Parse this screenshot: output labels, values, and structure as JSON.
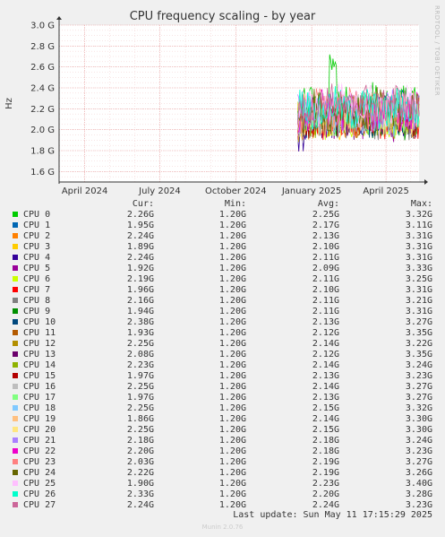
{
  "title": "CPU frequency scaling - by year",
  "side_label": "RRDTOOL / TOBI OETIKER",
  "headers": {
    "cur": "Cur:",
    "min": "Min:",
    "avg": "Avg:",
    "max": "Max:"
  },
  "last_update": "Last update: Sun May 11 17:15:29 2025",
  "footer": "Munin 2.0.76",
  "chart_data": {
    "type": "line",
    "title": "CPU frequency scaling - by year",
    "ylabel": "Hz",
    "y_ticks": [
      "1.6 G",
      "1.8 G",
      "2.0 G",
      "2.2 G",
      "2.4 G",
      "2.6 G",
      "2.8 G",
      "3.0 G"
    ],
    "y_tick_values": [
      1.6,
      1.8,
      2.0,
      2.2,
      2.4,
      2.6,
      2.8,
      3.0
    ],
    "ylim": [
      1.5,
      3.0
    ],
    "x_ticks": [
      "April 2024",
      "July 2024",
      "October 2024",
      "January 2025",
      "April 2025"
    ],
    "x_tick_dates": [
      "2024-04-01",
      "2024-07-01",
      "2024-10-01",
      "2025-01-01",
      "2025-04-01"
    ],
    "xlim": [
      "2024-03-01",
      "2025-05-11"
    ],
    "data_start": "2024-12-15",
    "grid": true,
    "series": [
      {
        "name": "CPU 0",
        "color": "#00cc00",
        "cur": "2.26G",
        "min": "1.20G",
        "avg": "2.25G",
        "max": "3.32G"
      },
      {
        "name": "CPU 1",
        "color": "#0066b3",
        "cur": "1.95G",
        "min": "1.20G",
        "avg": "2.17G",
        "max": "3.11G"
      },
      {
        "name": "CPU 2",
        "color": "#ff8000",
        "cur": "2.24G",
        "min": "1.20G",
        "avg": "2.13G",
        "max": "3.31G"
      },
      {
        "name": "CPU 3",
        "color": "#ffcc00",
        "cur": "1.89G",
        "min": "1.20G",
        "avg": "2.10G",
        "max": "3.31G"
      },
      {
        "name": "CPU 4",
        "color": "#330099",
        "cur": "2.24G",
        "min": "1.20G",
        "avg": "2.11G",
        "max": "3.31G"
      },
      {
        "name": "CPU 5",
        "color": "#990099",
        "cur": "1.92G",
        "min": "1.20G",
        "avg": "2.09G",
        "max": "3.33G"
      },
      {
        "name": "CPU 6",
        "color": "#ccff00",
        "cur": "2.19G",
        "min": "1.20G",
        "avg": "2.11G",
        "max": "3.25G"
      },
      {
        "name": "CPU 7",
        "color": "#ff0000",
        "cur": "1.96G",
        "min": "1.20G",
        "avg": "2.10G",
        "max": "3.31G"
      },
      {
        "name": "CPU 8",
        "color": "#808080",
        "cur": "2.16G",
        "min": "1.20G",
        "avg": "2.11G",
        "max": "3.21G"
      },
      {
        "name": "CPU 9",
        "color": "#008f00",
        "cur": "1.94G",
        "min": "1.20G",
        "avg": "2.11G",
        "max": "3.31G"
      },
      {
        "name": "CPU 10",
        "color": "#00487d",
        "cur": "2.38G",
        "min": "1.20G",
        "avg": "2.13G",
        "max": "3.27G"
      },
      {
        "name": "CPU 11",
        "color": "#b35a00",
        "cur": "1.93G",
        "min": "1.20G",
        "avg": "2.12G",
        "max": "3.35G"
      },
      {
        "name": "CPU 12",
        "color": "#b38f00",
        "cur": "2.25G",
        "min": "1.20G",
        "avg": "2.14G",
        "max": "3.22G"
      },
      {
        "name": "CPU 13",
        "color": "#6b006b",
        "cur": "2.08G",
        "min": "1.20G",
        "avg": "2.12G",
        "max": "3.35G"
      },
      {
        "name": "CPU 14",
        "color": "#8fb300",
        "cur": "2.23G",
        "min": "1.20G",
        "avg": "2.14G",
        "max": "3.24G"
      },
      {
        "name": "CPU 15",
        "color": "#b30000",
        "cur": "1.97G",
        "min": "1.20G",
        "avg": "2.13G",
        "max": "3.23G"
      },
      {
        "name": "CPU 16",
        "color": "#bebebe",
        "cur": "2.25G",
        "min": "1.20G",
        "avg": "2.14G",
        "max": "3.27G"
      },
      {
        "name": "CPU 17",
        "color": "#80ff80",
        "cur": "1.97G",
        "min": "1.20G",
        "avg": "2.13G",
        "max": "3.27G"
      },
      {
        "name": "CPU 18",
        "color": "#80c9ff",
        "cur": "2.25G",
        "min": "1.20G",
        "avg": "2.15G",
        "max": "3.32G"
      },
      {
        "name": "CPU 19",
        "color": "#ffc080",
        "cur": "1.86G",
        "min": "1.20G",
        "avg": "2.14G",
        "max": "3.30G"
      },
      {
        "name": "CPU 20",
        "color": "#ffe680",
        "cur": "2.25G",
        "min": "1.20G",
        "avg": "2.15G",
        "max": "3.30G"
      },
      {
        "name": "CPU 21",
        "color": "#aa80ff",
        "cur": "2.18G",
        "min": "1.20G",
        "avg": "2.18G",
        "max": "3.24G"
      },
      {
        "name": "CPU 22",
        "color": "#ee00cc",
        "cur": "2.20G",
        "min": "1.20G",
        "avg": "2.18G",
        "max": "3.23G"
      },
      {
        "name": "CPU 23",
        "color": "#ff8080",
        "cur": "2.03G",
        "min": "1.20G",
        "avg": "2.19G",
        "max": "3.27G"
      },
      {
        "name": "CPU 24",
        "color": "#666600",
        "cur": "2.22G",
        "min": "1.20G",
        "avg": "2.19G",
        "max": "3.26G"
      },
      {
        "name": "CPU 25",
        "color": "#ffbfff",
        "cur": "1.90G",
        "min": "1.20G",
        "avg": "2.23G",
        "max": "3.40G"
      },
      {
        "name": "CPU 26",
        "color": "#00ffcc",
        "cur": "2.33G",
        "min": "1.20G",
        "avg": "2.20G",
        "max": "3.28G"
      },
      {
        "name": "CPU 27",
        "color": "#cc6699",
        "cur": "2.24G",
        "min": "1.20G",
        "avg": "2.24G",
        "max": "3.23G"
      }
    ]
  }
}
